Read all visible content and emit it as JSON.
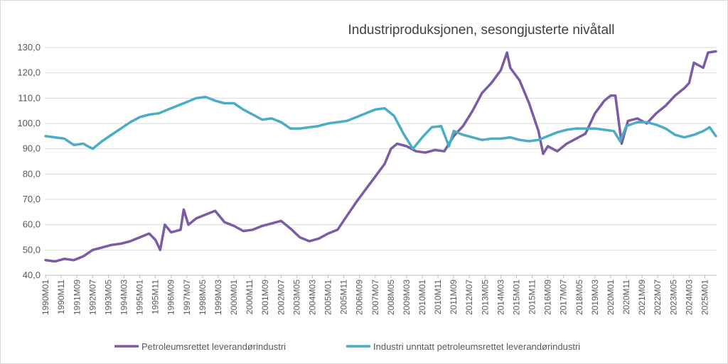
{
  "chart_data": {
    "type": "line",
    "title": "Industriproduksjonen, sesongjusterte nivåtall",
    "xlabel": "",
    "ylabel": "",
    "ylim": [
      40,
      130
    ],
    "y_ticks": [
      "40,0",
      "50,0",
      "60,0",
      "70,0",
      "80,0",
      "90,0",
      "100,0",
      "110,0",
      "120,0",
      "130,0"
    ],
    "x_tick_labels": [
      "1990M01",
      "1990M11",
      "1991M09",
      "1992M07",
      "1993M05",
      "1994M03",
      "1995M01",
      "1995M11",
      "1996M09",
      "1997M07",
      "1998M05",
      "1999M03",
      "2000M01",
      "2000M11",
      "2001M09",
      "2002M07",
      "2003M05",
      "2004M03",
      "2005M01",
      "2005M11",
      "2006M09",
      "2007M07",
      "2008M05",
      "2009M03",
      "2010M01",
      "2010M11",
      "2011M09",
      "2012M07",
      "2013M05",
      "2014M03",
      "2015M01",
      "2015M11",
      "2016M09",
      "2017M07",
      "2018M05",
      "2019M03",
      "2020M01",
      "2020M11",
      "2021M09",
      "2022M07",
      "2023M05",
      "2024M03",
      "2025M01"
    ],
    "x_range": [
      "1990M01",
      "2025M08"
    ],
    "grid": true,
    "legend_position": "bottom",
    "series": [
      {
        "name": "Petroleumsrettet leverandørindustri",
        "color": "#7B5BA6",
        "points": [
          [
            "1990M01",
            46
          ],
          [
            "1990M07",
            45.5
          ],
          [
            "1991M01",
            46.5
          ],
          [
            "1991M07",
            46
          ],
          [
            "1992M01",
            47.5
          ],
          [
            "1992M07",
            50
          ],
          [
            "1993M01",
            51
          ],
          [
            "1993M07",
            52
          ],
          [
            "1994M01",
            52.5
          ],
          [
            "1994M07",
            53.5
          ],
          [
            "1995M01",
            55
          ],
          [
            "1995M07",
            56.5
          ],
          [
            "1995M11",
            54
          ],
          [
            "1996M02",
            50
          ],
          [
            "1996M05",
            60
          ],
          [
            "1996M09",
            57
          ],
          [
            "1997M03",
            58
          ],
          [
            "1997M05",
            66
          ],
          [
            "1997M08",
            60
          ],
          [
            "1998M01",
            62.5
          ],
          [
            "1998M07",
            64
          ],
          [
            "1999M01",
            65.5
          ],
          [
            "1999M07",
            61
          ],
          [
            "2000M01",
            59.5
          ],
          [
            "2000M07",
            57.5
          ],
          [
            "2001M01",
            58
          ],
          [
            "2001M07",
            59.5
          ],
          [
            "2002M01",
            60.5
          ],
          [
            "2002M07",
            61.5
          ],
          [
            "2003M01",
            58.5
          ],
          [
            "2003M07",
            55
          ],
          [
            "2004M01",
            53.5
          ],
          [
            "2004M07",
            54.5
          ],
          [
            "2005M01",
            56.5
          ],
          [
            "2005M07",
            58
          ],
          [
            "2006M01",
            63.5
          ],
          [
            "2006M07",
            69
          ],
          [
            "2007M01",
            74
          ],
          [
            "2007M07",
            79
          ],
          [
            "2008M01",
            84
          ],
          [
            "2008M05",
            90
          ],
          [
            "2008M09",
            92
          ],
          [
            "2009M03",
            91
          ],
          [
            "2009M09",
            89
          ],
          [
            "2010M03",
            88.5
          ],
          [
            "2010M09",
            89.5
          ],
          [
            "2011M03",
            89
          ],
          [
            "2011M09",
            95
          ],
          [
            "2012M03",
            99
          ],
          [
            "2012M09",
            105
          ],
          [
            "2013M03",
            112
          ],
          [
            "2013M09",
            116
          ],
          [
            "2014M03",
            121
          ],
          [
            "2014M07",
            128
          ],
          [
            "2014M09",
            122
          ],
          [
            "2015M03",
            117
          ],
          [
            "2015M09",
            108
          ],
          [
            "2016M03",
            97
          ],
          [
            "2016M06",
            88
          ],
          [
            "2016M09",
            91
          ],
          [
            "2017M03",
            89
          ],
          [
            "2017M09",
            92
          ],
          [
            "2018M03",
            94
          ],
          [
            "2018M09",
            96
          ],
          [
            "2019M03",
            104
          ],
          [
            "2019M09",
            109
          ],
          [
            "2020M01",
            111
          ],
          [
            "2020M04",
            111
          ],
          [
            "2020M08",
            92
          ],
          [
            "2020M12",
            101
          ],
          [
            "2021M06",
            102
          ],
          [
            "2021M12",
            100
          ],
          [
            "2022M06",
            104
          ],
          [
            "2022M12",
            107
          ],
          [
            "2023M06",
            111
          ],
          [
            "2023M12",
            114
          ],
          [
            "2024M03",
            116
          ],
          [
            "2024M06",
            124
          ],
          [
            "2024M12",
            122
          ],
          [
            "2025M03",
            128
          ],
          [
            "2025M08",
            128.5
          ]
        ]
      },
      {
        "name": "Industri unntatt petroleumsrettet leverandørindustri",
        "color": "#4BACC6",
        "points": [
          [
            "1990M01",
            95
          ],
          [
            "1990M07",
            94.5
          ],
          [
            "1991M01",
            94
          ],
          [
            "1991M07",
            91.5
          ],
          [
            "1992M01",
            92
          ],
          [
            "1992M07",
            90
          ],
          [
            "1993M01",
            93
          ],
          [
            "1993M07",
            95.5
          ],
          [
            "1994M01",
            98
          ],
          [
            "1994M07",
            100.5
          ],
          [
            "1995M01",
            102.5
          ],
          [
            "1995M07",
            103.5
          ],
          [
            "1996M01",
            104
          ],
          [
            "1996M07",
            105.5
          ],
          [
            "1997M01",
            107
          ],
          [
            "1997M07",
            108.5
          ],
          [
            "1998M01",
            110
          ],
          [
            "1998M07",
            110.5
          ],
          [
            "1999M01",
            109
          ],
          [
            "1999M07",
            108
          ],
          [
            "2000M01",
            108
          ],
          [
            "2000M07",
            105.5
          ],
          [
            "2001M01",
            103.5
          ],
          [
            "2001M07",
            101.5
          ],
          [
            "2002M01",
            102
          ],
          [
            "2002M07",
            100.5
          ],
          [
            "2003M01",
            98
          ],
          [
            "2003M07",
            98
          ],
          [
            "2004M01",
            98.5
          ],
          [
            "2004M07",
            99
          ],
          [
            "2005M01",
            100
          ],
          [
            "2005M07",
            100.5
          ],
          [
            "2006M01",
            101
          ],
          [
            "2006M07",
            102.5
          ],
          [
            "2007M01",
            104
          ],
          [
            "2007M07",
            105.5
          ],
          [
            "2008M01",
            106
          ],
          [
            "2008M07",
            103
          ],
          [
            "2009M01",
            96
          ],
          [
            "2009M07",
            90
          ],
          [
            "2010M01",
            94.5
          ],
          [
            "2010M07",
            98.5
          ],
          [
            "2011M01",
            99
          ],
          [
            "2011M06",
            91
          ],
          [
            "2011M09",
            97
          ],
          [
            "2012M03",
            95.5
          ],
          [
            "2012M09",
            94.5
          ],
          [
            "2013M03",
            93.5
          ],
          [
            "2013M09",
            94
          ],
          [
            "2014M03",
            94
          ],
          [
            "2014M09",
            94.5
          ],
          [
            "2015M03",
            93.5
          ],
          [
            "2015M09",
            93
          ],
          [
            "2016M03",
            93.5
          ],
          [
            "2016M09",
            95
          ],
          [
            "2017M03",
            96.5
          ],
          [
            "2017M09",
            97.5
          ],
          [
            "2018M03",
            98
          ],
          [
            "2018M09",
            98
          ],
          [
            "2019M03",
            98
          ],
          [
            "2019M09",
            97.5
          ],
          [
            "2020M03",
            97
          ],
          [
            "2020M07",
            93
          ],
          [
            "2020M11",
            99
          ],
          [
            "2021M06",
            100.5
          ],
          [
            "2021M12",
            100.5
          ],
          [
            "2022M06",
            99.5
          ],
          [
            "2022M12",
            98
          ],
          [
            "2023M06",
            95.5
          ],
          [
            "2023M12",
            94.5
          ],
          [
            "2024M06",
            95.5
          ],
          [
            "2024M12",
            97
          ],
          [
            "2025M04",
            98.5
          ],
          [
            "2025M08",
            95
          ]
        ]
      }
    ]
  }
}
